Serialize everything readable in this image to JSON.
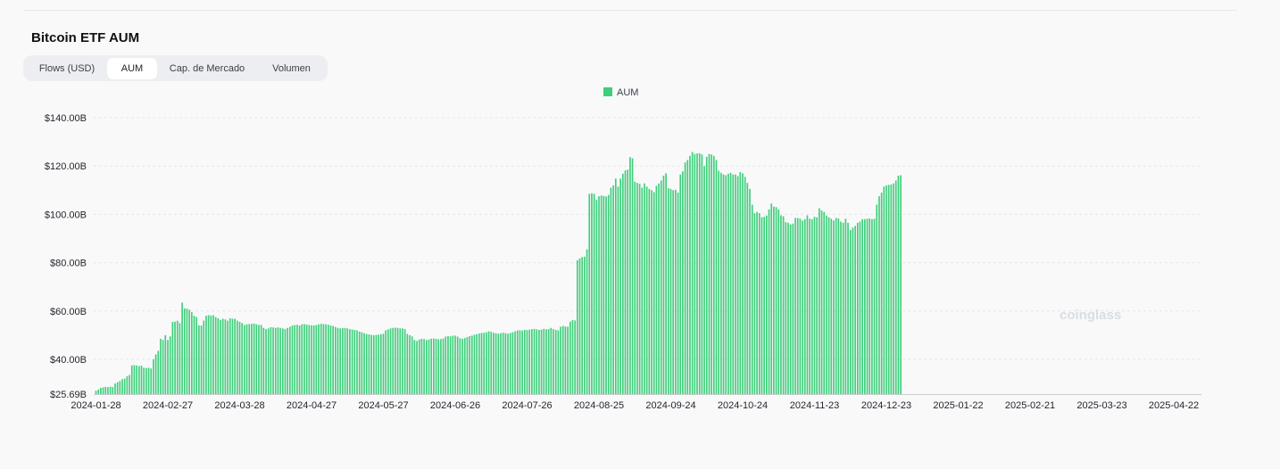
{
  "title": "Bitcoin ETF AUM",
  "tabs": [
    {
      "label": "Flows (USD)",
      "active": false
    },
    {
      "label": "AUM",
      "active": true
    },
    {
      "label": "Cap. de Mercado",
      "active": false
    },
    {
      "label": "Volumen",
      "active": false
    }
  ],
  "watermark": "coinglass",
  "chart_data": {
    "type": "bar",
    "legend": {
      "label": "AUM",
      "position": "top-center",
      "color": "#3ecf7a"
    },
    "x_ticks": [
      "2024-01-28",
      "2024-02-27",
      "2024-03-28",
      "2024-04-27",
      "2024-05-27",
      "2024-06-26",
      "2024-07-26",
      "2024-08-25",
      "2024-09-24",
      "2024-10-24",
      "2024-11-23",
      "2024-12-23",
      "2025-01-22",
      "2025-02-21",
      "2025-03-23",
      "2025-04-22"
    ],
    "y_ticks": [
      "$25.69B",
      "$40.00B",
      "$60.00B",
      "$80.00B",
      "$100.00B",
      "$120.00B",
      "$140.00B"
    ],
    "y_tick_values": [
      25.69,
      40,
      60,
      80,
      100,
      120,
      140
    ],
    "ylim": [
      25.69,
      140
    ],
    "grid": true,
    "unit": "B",
    "start_date": "2024-01-28",
    "series": [
      {
        "name": "AUM",
        "color": "#3ecf7a",
        "values": [
          27.0,
          27.5,
          28.2,
          28.4,
          28.6,
          28.5,
          28.7,
          28.5,
          30.0,
          30.5,
          31.0,
          31.8,
          32.0,
          33.0,
          33.5,
          37.5,
          37.6,
          37.4,
          37.2,
          37.4,
          36.5,
          36.4,
          36.5,
          36.2,
          40.0,
          42.0,
          43.5,
          48.5,
          48.0,
          50.0,
          48.0,
          49.5,
          55.5,
          55.6,
          56.0,
          55.0,
          63.5,
          61.0,
          61.0,
          60.5,
          59.5,
          58.0,
          57.5,
          54.0,
          54.0,
          56.0,
          58.0,
          58.3,
          58.1,
          58.3,
          57.5,
          57.0,
          56.3,
          56.8,
          56.5,
          56.0,
          57.0,
          56.8,
          56.8,
          56.0,
          55.5,
          55.0,
          54.2,
          54.5,
          54.6,
          54.7,
          54.8,
          54.5,
          54.3,
          54.2,
          53.0,
          52.5,
          52.8,
          53.3,
          53.2,
          53.0,
          53.2,
          53.0,
          52.8,
          52.5,
          53.0,
          53.5,
          54.0,
          54.2,
          54.3,
          54.0,
          54.5,
          54.6,
          54.4,
          54.2,
          54.1,
          54.0,
          54.2,
          54.5,
          54.7,
          54.6,
          54.5,
          54.3,
          54.0,
          53.8,
          53.4,
          53.0,
          52.8,
          52.9,
          53.0,
          52.8,
          52.5,
          52.3,
          52.2,
          52.0,
          51.5,
          51.2,
          50.8,
          50.5,
          50.3,
          50.1,
          50.0,
          50.1,
          50.2,
          50.4,
          50.6,
          52.0,
          52.4,
          52.8,
          53.0,
          53.1,
          53.0,
          52.8,
          52.8,
          52.5,
          50.5,
          50.0,
          49.5,
          48.0,
          47.6,
          48.2,
          48.5,
          48.4,
          48.0,
          48.2,
          48.5,
          48.6,
          48.5,
          48.3,
          48.4,
          48.6,
          49.4,
          49.6,
          49.5,
          49.8,
          49.8,
          49.4,
          48.7,
          48.5,
          48.8,
          49.2,
          49.6,
          49.8,
          50.2,
          50.4,
          50.7,
          50.9,
          51.0,
          51.2,
          51.6,
          51.4,
          51.0,
          50.8,
          50.6,
          50.8,
          51.0,
          50.8,
          50.6,
          50.9,
          51.2,
          51.6,
          52.0,
          52.0,
          51.9,
          52.2,
          52.1,
          52.3,
          52.5,
          52.6,
          52.4,
          52.2,
          52.3,
          52.6,
          52.4,
          52.5,
          53.0,
          52.5,
          52.2,
          52.0,
          53.5,
          53.8,
          53.6,
          53.5,
          55.6,
          56.3,
          56.1,
          81.0,
          81.8,
          82.3,
          82.5,
          85.5,
          108.5,
          108.7,
          108.5,
          106.0,
          107.5,
          107.8,
          107.6,
          107.4,
          108.0,
          111.0,
          112.0,
          114.8,
          111.5,
          114.8,
          116.8,
          118.2,
          118.5,
          123.7,
          123.2,
          113.5,
          113.0,
          112.6,
          111.0,
          112.8,
          111.5,
          110.5,
          110.0,
          109.2,
          111.8,
          112.8,
          114.0,
          116.0,
          117.0,
          110.8,
          110.5,
          110.0,
          110.2,
          109.0,
          116.5,
          117.8,
          121.5,
          122.5,
          124.2,
          125.8,
          125.0,
          125.2,
          125.3,
          124.8,
          120.0,
          123.8,
          125.0,
          124.8,
          124.2,
          122.5,
          118.0,
          117.2,
          116.5,
          116.2,
          116.8,
          117.2,
          116.5,
          116.5,
          115.8,
          117.5,
          117.0,
          115.5,
          113.0,
          110.5,
          104.0,
          100.5,
          101.0,
          100.5,
          98.8,
          99.0,
          99.5,
          102.0,
          104.5,
          103.2,
          103.0,
          102.0,
          99.6,
          99.2,
          96.8,
          96.5,
          95.8,
          96.2,
          98.5,
          98.5,
          98.2,
          97.4,
          98.0,
          99.6,
          98.2,
          98.0,
          99.0,
          98.8,
          102.5,
          101.6,
          101.0,
          99.5,
          98.8,
          98.2,
          97.5,
          98.5,
          98.3,
          97.0,
          96.5,
          98.2,
          96.5,
          93.5,
          94.5,
          95.2,
          96.5,
          97.0,
          98.0,
          98.0,
          98.2,
          98.3,
          98.0,
          98.2,
          104.0,
          107.5,
          109.0,
          111.5,
          112.0,
          112.2,
          112.3,
          112.8,
          114.0,
          116.0,
          116.2
        ]
      }
    ]
  }
}
